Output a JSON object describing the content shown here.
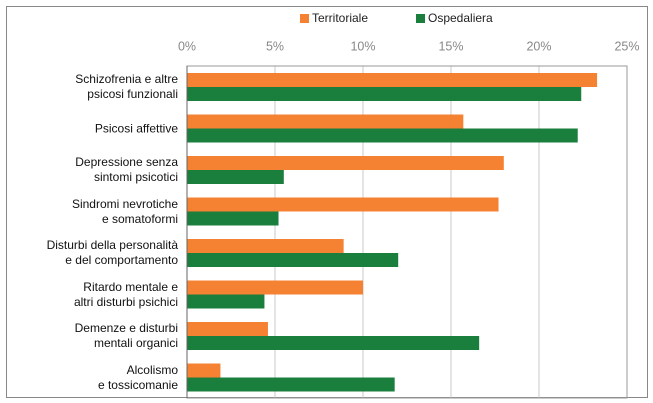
{
  "chart_data": {
    "type": "bar",
    "orientation": "horizontal",
    "categories": [
      "Schizofrenia e altre\npsicosi funzionali",
      "Psicosi affettive",
      "Depressione senza\nsintomi psicotici",
      "Sindromi nevrotiche\ne somatoformi",
      "Disturbi della personalità\ne del comportamento",
      "Ritardo mentale e\naltri disturbi psichici",
      "Demenze e disturbi\nmentali organici",
      "Alcolismo\ne tossicomanie"
    ],
    "series": [
      {
        "name": "Territoriale",
        "color": "#f58233",
        "values": [
          23.3,
          15.7,
          18.0,
          17.7,
          8.9,
          10.0,
          4.6,
          1.9
        ]
      },
      {
        "name": "Ospedaliera",
        "color": "#1a7f3c",
        "values": [
          22.4,
          22.2,
          5.5,
          5.2,
          12.0,
          4.4,
          16.6,
          11.8
        ]
      }
    ],
    "xlim": [
      0,
      25
    ],
    "xticks": [
      {
        "value": 0,
        "label": "0%"
      },
      {
        "value": 5,
        "label": "5%"
      },
      {
        "value": 10,
        "label": "10%"
      },
      {
        "value": 15,
        "label": "15%"
      },
      {
        "value": 20,
        "label": "20%"
      },
      {
        "value": 25,
        "label": "25%"
      }
    ],
    "grid": true,
    "legend": "top"
  }
}
